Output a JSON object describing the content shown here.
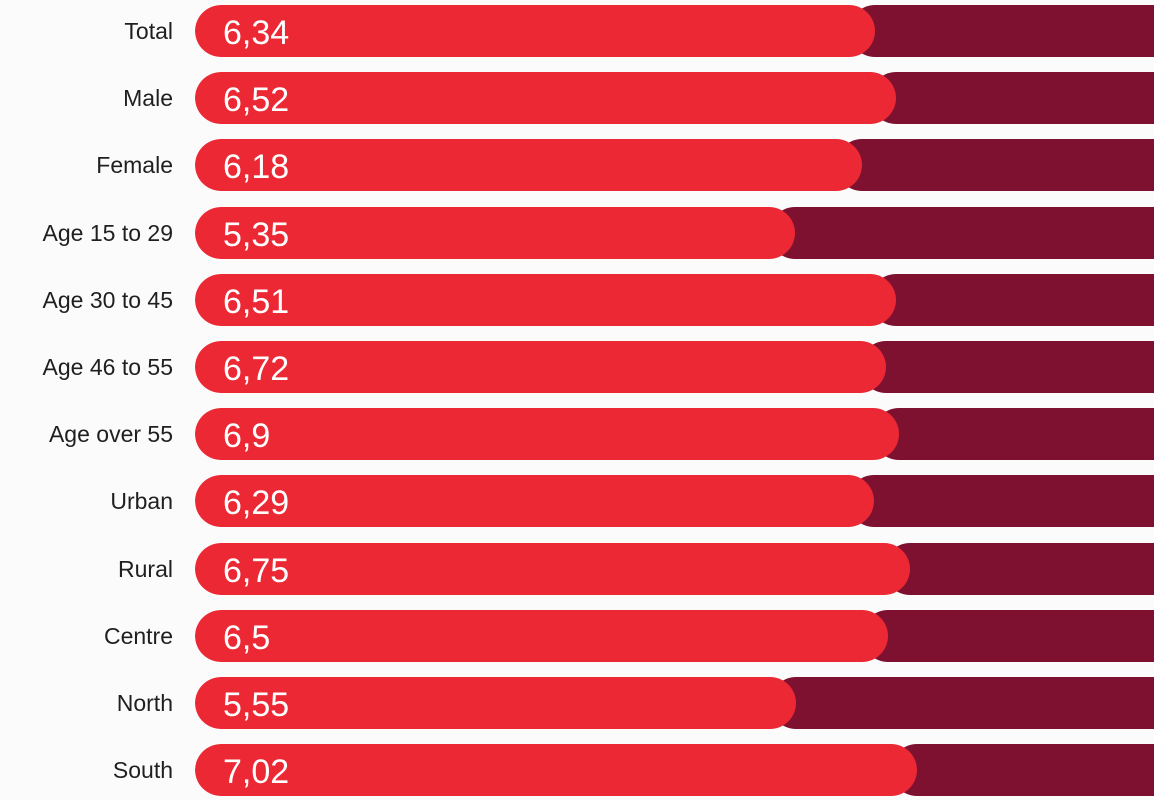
{
  "chart_data": {
    "type": "bar",
    "orientation": "horizontal",
    "stacked": true,
    "categories": [
      "Total",
      "Male",
      "Female",
      "Age 15 to 29",
      "Age 30 to 45",
      "Age 46 to 55",
      "Age over 55",
      "Urban",
      "Rural",
      "Centre",
      "North",
      "South"
    ],
    "value_labels": [
      "6,34",
      "6,52",
      "6,18",
      "5,35",
      "6,51",
      "6,72",
      "6,9",
      "6,29",
      "6,75",
      "6,5",
      "5,55",
      "7,02"
    ],
    "values": [
      6.34,
      6.52,
      6.18,
      5.35,
      6.51,
      6.72,
      6.9,
      6.29,
      6.75,
      6.5,
      5.55,
      7.02
    ],
    "remainder_values": [
      2.6,
      2.4,
      2.7,
      3.2,
      2.4,
      2.6,
      2.5,
      2.6,
      2.3,
      2.5,
      3.3,
      2.3
    ],
    "colors": {
      "primary": "#eb2833",
      "remainder": "#7f1130",
      "background": "#fbfbfb"
    }
  }
}
